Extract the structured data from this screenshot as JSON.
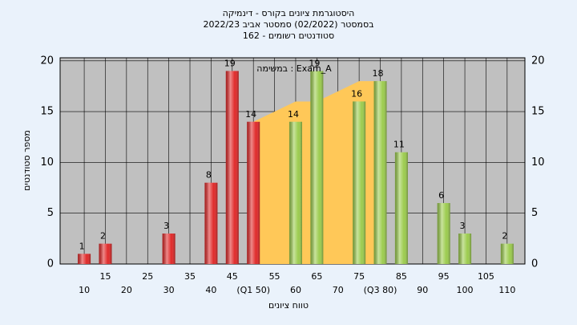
{
  "chart_data": {
    "type": "histogram",
    "title": [
      "היסטוגרמת ציונים בקורס - דינמיקה",
      "בסמסטר  (02/2022)  סמסטר אביב 2022/23",
      "סטודנטים רשומים - 162"
    ],
    "annotation": "במשימה : Exam_A",
    "x_label": "טווח ציונים",
    "y_label": "מספר סטודנטים",
    "series": [
      {
        "color": "#e02a2a",
        "x": [
          10,
          15,
          30,
          40,
          45,
          50
        ],
        "values": [
          1,
          2,
          3,
          8,
          19,
          14
        ]
      },
      {
        "color": "#9ccc4e",
        "x": [
          60,
          65,
          75,
          80,
          85,
          95,
          100,
          110
        ],
        "values": [
          14,
          19,
          16,
          18,
          11,
          6,
          3,
          2
        ]
      }
    ],
    "area": {
      "color": "#ffc858",
      "x": [
        50,
        60,
        65,
        75,
        80
      ],
      "values": [
        14,
        16,
        16,
        18,
        18
      ]
    },
    "xlim": [
      4.3,
      114.2
    ],
    "xticks": [
      10,
      15,
      20,
      25,
      30,
      35,
      40,
      45,
      {
        "value": 50,
        "label": "(Q1 50)"
      },
      55,
      60,
      65,
      70,
      75,
      {
        "value": 80,
        "label": "(Q3 80)"
      },
      85,
      90,
      95,
      100,
      105,
      110
    ],
    "ylim": [
      0,
      20.3
    ],
    "yticks": [
      0,
      5,
      10,
      15,
      20
    ],
    "grid": true
  }
}
